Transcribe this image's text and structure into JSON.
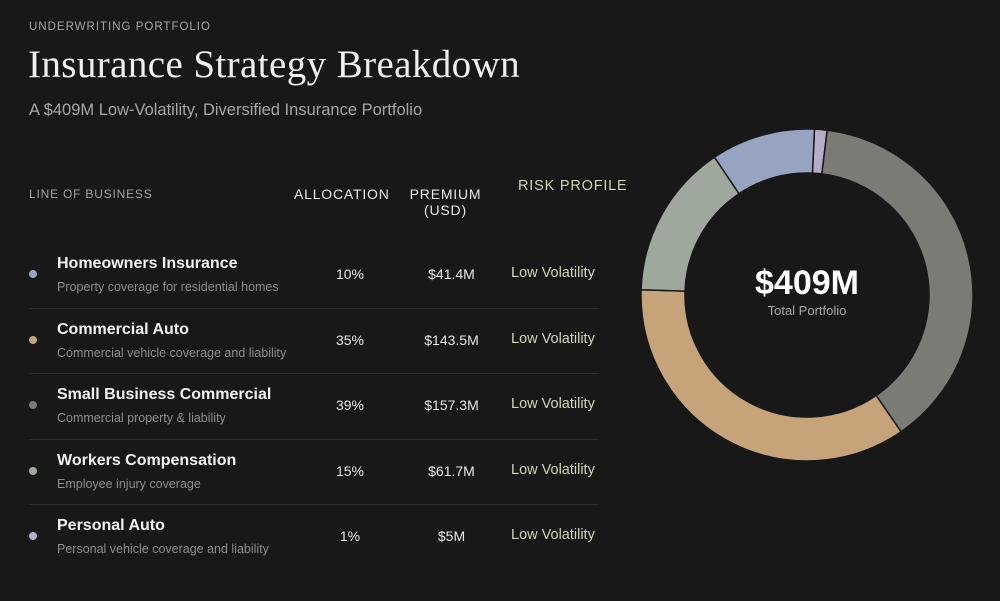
{
  "header": {
    "eyebrow": "UNDERWRITING PORTFOLIO",
    "title": "Insurance Strategy Breakdown",
    "subtitle": "A $409M Low-Volatility, Diversified Insurance Portfolio"
  },
  "table": {
    "columns": [
      "LINE OF BUSINESS",
      "ALLOCATION",
      "PREMIUM (USD)",
      "RISK PROFILE"
    ]
  },
  "donut_center": {
    "value": "$409M",
    "label": "Total Portfolio"
  },
  "chart_data": {
    "type": "pie",
    "title": "",
    "categories": [
      "Homeowners Insurance",
      "Commercial Auto",
      "Small Business Commercial",
      "Workers Compensation",
      "Personal Auto"
    ],
    "rows": [
      {
        "name": "Homeowners Insurance",
        "description": "Property coverage for residential homes",
        "allocation": "10%",
        "premium": "$41.4M",
        "risk": "Low Volatility",
        "value": 41.4,
        "color": "#96a4c2"
      },
      {
        "name": "Commercial Auto",
        "description": "Commercial vehicle coverage and liability",
        "allocation": "35%",
        "premium": "$143.5M",
        "risk": "Low Volatility",
        "value": 143.5,
        "color": "#c6a378"
      },
      {
        "name": "Small Business Commercial",
        "description": "Commercial property & liability",
        "allocation": "39%",
        "premium": "$157.3M",
        "risk": "Low Volatility",
        "value": 157.3,
        "color": "#7b7b76"
      },
      {
        "name": "Workers Compensation",
        "description": "Employee injury coverage",
        "allocation": "15%",
        "premium": "$61.7M",
        "risk": "Low Volatility",
        "value": 61.7,
        "color": "#9fa89c"
      },
      {
        "name": "Personal Auto",
        "description": "Personal vehicle coverage and liability",
        "allocation": "1%",
        "premium": "$5M",
        "risk": "Low Volatility",
        "value": 5,
        "color": "#b6aec9"
      }
    ],
    "slice_order": [
      "Personal Auto",
      "Small Business Commercial",
      "Commercial Auto",
      "Workers Compensation",
      "Homeowners Insurance"
    ]
  }
}
